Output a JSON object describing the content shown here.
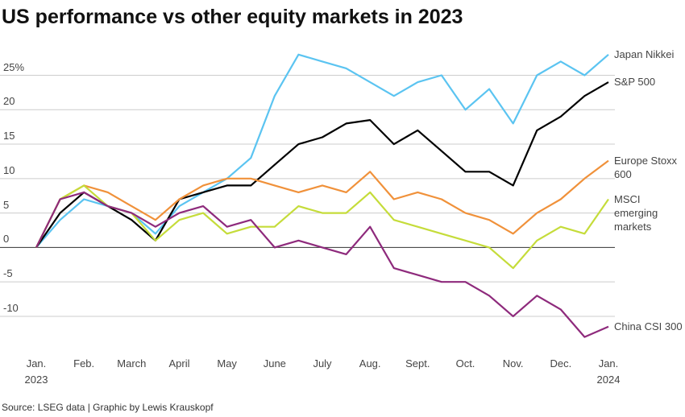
{
  "chart_data": {
    "type": "line",
    "title": "US performance vs other equity markets in 2023",
    "source": "Source: LSEG data | Graphic by Lewis Krauskopf",
    "x": [
      0,
      0.5,
      1,
      1.5,
      2,
      2.5,
      3,
      3.5,
      4,
      4.5,
      5,
      5.5,
      6,
      6.5,
      7,
      7.5,
      8,
      8.5,
      9,
      9.5,
      10,
      10.5,
      11,
      11.5,
      12
    ],
    "xlim": [
      0,
      12
    ],
    "xticks": [
      {
        "value": 0,
        "label": "Jan.\n2023"
      },
      {
        "value": 1,
        "label": "Feb."
      },
      {
        "value": 2,
        "label": "March"
      },
      {
        "value": 3,
        "label": "April"
      },
      {
        "value": 4,
        "label": "May"
      },
      {
        "value": 5,
        "label": "June"
      },
      {
        "value": 6,
        "label": "July"
      },
      {
        "value": 7,
        "label": "Aug."
      },
      {
        "value": 8,
        "label": "Sept."
      },
      {
        "value": 9,
        "label": "Oct."
      },
      {
        "value": 10,
        "label": "Nov."
      },
      {
        "value": 11,
        "label": "Dec."
      },
      {
        "value": 12,
        "label": "Jan.\n2024"
      }
    ],
    "ylim": [
      -15.5,
      29.5
    ],
    "yticks": [
      -10,
      -5,
      0,
      5,
      10,
      15,
      20,
      {
        "value": 25,
        "label": "25%"
      }
    ],
    "grid": true,
    "series": [
      {
        "name": "Japan Nikkei",
        "color": "#5bc4f1",
        "values": [
          0,
          4,
          7,
          6,
          5,
          2,
          6,
          8,
          10,
          13,
          22,
          28,
          27,
          26,
          24,
          22,
          24,
          25,
          20,
          23,
          18,
          25,
          27,
          25,
          28
        ]
      },
      {
        "name": "S&P 500",
        "color": "#000000",
        "values": [
          0,
          5,
          8,
          6,
          4,
          1,
          7,
          8,
          9,
          9,
          12,
          15,
          16,
          18,
          18.5,
          15,
          17,
          14,
          11,
          11,
          9,
          17,
          19,
          22,
          24
        ]
      },
      {
        "name": "Europe Stoxx 600",
        "color": "#f0913a",
        "values": [
          0,
          7,
          9,
          8,
          6,
          4,
          7,
          9,
          10,
          10,
          9,
          8,
          9,
          8,
          11,
          7,
          8,
          7,
          5,
          4,
          2,
          5,
          7,
          10,
          12.6
        ]
      },
      {
        "name": "MSCI emerging markets",
        "color": "#c5dc3a",
        "values": [
          0,
          7,
          9,
          6,
          5,
          1,
          4,
          5,
          2,
          3,
          3,
          6,
          5,
          5,
          8,
          4,
          3,
          2,
          1,
          0,
          -3,
          1,
          3,
          2,
          7
        ]
      },
      {
        "name": "China CSI 300",
        "color": "#8e2a7c",
        "values": [
          0,
          7,
          8,
          6,
          5,
          3,
          5,
          6,
          3,
          4,
          0,
          1,
          0,
          -1,
          3,
          -3,
          -4,
          -5,
          -5,
          -7,
          -10,
          -7,
          -9,
          -13,
          -11.5
        ]
      }
    ]
  }
}
